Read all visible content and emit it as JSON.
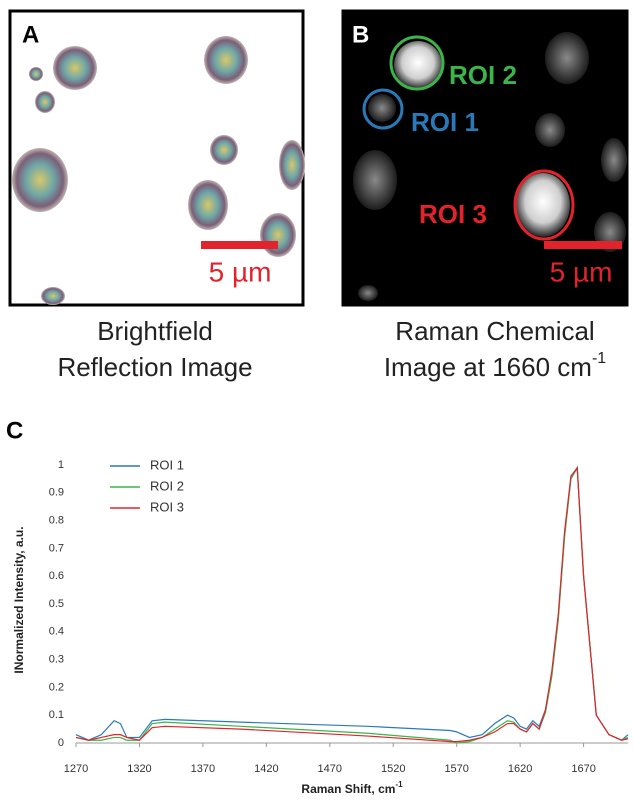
{
  "panel_a": {
    "letter": "A",
    "scale_bar": "5 µm",
    "caption": [
      "Brightfield",
      "Reflection Image"
    ]
  },
  "panel_b": {
    "letter": "B",
    "scale_bar": "5 µm",
    "rois": [
      "ROI 2",
      "ROI 1",
      "ROI 3"
    ],
    "caption": [
      "Raman Chemical",
      "Image at 1660 cm",
      "-1"
    ]
  },
  "chart_data": {
    "type": "line",
    "panel": "C",
    "xlabel": "Raman Shift, cm",
    "xlabel_sup": "-1",
    "ylabel": "INormalized Intensity, a.u.",
    "xlim": [
      1270,
      1705
    ],
    "xticks": [
      1270,
      1320,
      1370,
      1420,
      1470,
      1520,
      1570,
      1620,
      1670
    ],
    "ylim": [
      0,
      1
    ],
    "yticks": [
      0,
      0.1,
      0.2,
      0.3,
      0.4,
      0.5,
      0.6,
      0.7,
      0.8,
      0.9,
      1
    ],
    "grid": false,
    "legend": "top-left",
    "x": [
      1270,
      1280,
      1290,
      1300,
      1305,
      1310,
      1320,
      1330,
      1340,
      1400,
      1500,
      1565,
      1570,
      1580,
      1590,
      1600,
      1610,
      1615,
      1620,
      1625,
      1630,
      1635,
      1640,
      1645,
      1650,
      1655,
      1660,
      1665,
      1670,
      1680,
      1690,
      1700,
      1705
    ],
    "series": [
      {
        "name": "ROI 1",
        "color": "#2a7ab9",
        "values": [
          0.03,
          0.01,
          0.03,
          0.08,
          0.07,
          0.02,
          0.02,
          0.08,
          0.085,
          0.075,
          0.06,
          0.045,
          0.04,
          0.02,
          0.03,
          0.07,
          0.1,
          0.09,
          0.06,
          0.05,
          0.08,
          0.06,
          0.12,
          0.25,
          0.45,
          0.75,
          0.95,
          0.99,
          0.6,
          0.1,
          0.03,
          0.01,
          0.03
        ]
      },
      {
        "name": "ROI 2",
        "color": "#3cb44a",
        "values": [
          0.02,
          0.01,
          0.01,
          0.02,
          0.02,
          0.01,
          0.01,
          0.07,
          0.075,
          0.06,
          0.035,
          0.01,
          0.0,
          0.005,
          0.02,
          0.05,
          0.08,
          0.075,
          0.05,
          0.04,
          0.07,
          0.05,
          0.11,
          0.24,
          0.44,
          0.74,
          0.95,
          0.99,
          0.6,
          0.1,
          0.03,
          0.01,
          0.02
        ]
      },
      {
        "name": "ROI 3",
        "color": "#e3232c",
        "values": [
          0.02,
          0.01,
          0.02,
          0.03,
          0.03,
          0.02,
          0.01,
          0.055,
          0.06,
          0.05,
          0.025,
          0.005,
          0.005,
          0.01,
          0.02,
          0.04,
          0.07,
          0.07,
          0.05,
          0.04,
          0.07,
          0.05,
          0.12,
          0.26,
          0.46,
          0.76,
          0.96,
          0.99,
          0.6,
          0.1,
          0.03,
          0.01,
          0.015
        ]
      }
    ]
  }
}
